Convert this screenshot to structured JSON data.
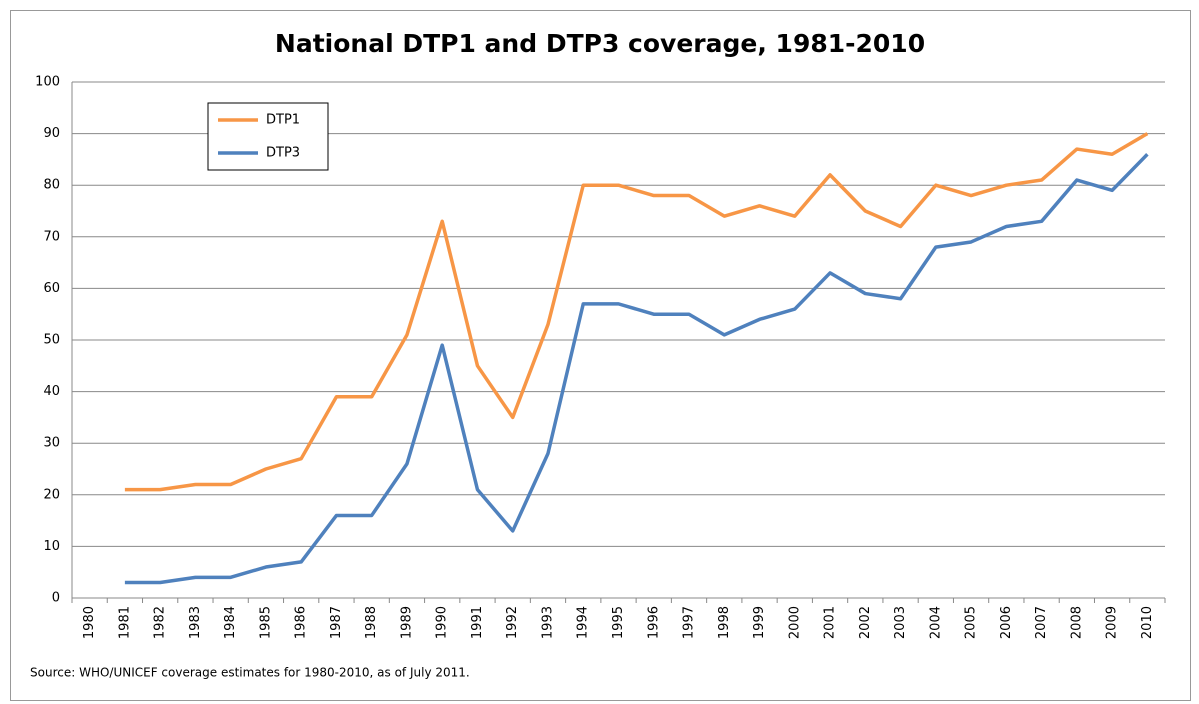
{
  "chart_data": {
    "type": "line",
    "title": "National DTP1 and DTP3 coverage, 1981-2010",
    "source": "Source: WHO/UNICEF coverage estimates for 1980-2010, as of July 2011.",
    "categories": [
      "1980",
      "1981",
      "1982",
      "1983",
      "1984",
      "1985",
      "1986",
      "1987",
      "1988",
      "1989",
      "1990",
      "1991",
      "1992",
      "1993",
      "1994",
      "1995",
      "1996",
      "1997",
      "1998",
      "1999",
      "2000",
      "2001",
      "2002",
      "2003",
      "2004",
      "2005",
      "2006",
      "2007",
      "2008",
      "2009",
      "2010"
    ],
    "series": [
      {
        "name": "DTP1",
        "color": "#f79646",
        "values": [
          null,
          21,
          21,
          22,
          22,
          25,
          27,
          39,
          39,
          51,
          73,
          45,
          35,
          53,
          80,
          80,
          78,
          78,
          74,
          76,
          74,
          82,
          75,
          72,
          80,
          78,
          80,
          81,
          87,
          86,
          90
        ]
      },
      {
        "name": "DTP3",
        "color": "#4f81bd",
        "values": [
          null,
          3,
          3,
          4,
          4,
          6,
          7,
          16,
          16,
          26,
          49,
          21,
          13,
          28,
          57,
          57,
          55,
          55,
          51,
          54,
          56,
          63,
          59,
          58,
          68,
          69,
          72,
          73,
          81,
          79,
          86
        ]
      }
    ],
    "ylim": [
      0,
      100
    ],
    "yticks": [
      0,
      10,
      20,
      30,
      40,
      50,
      60,
      70,
      80,
      90,
      100
    ],
    "grid": true,
    "legend": "top-left"
  }
}
